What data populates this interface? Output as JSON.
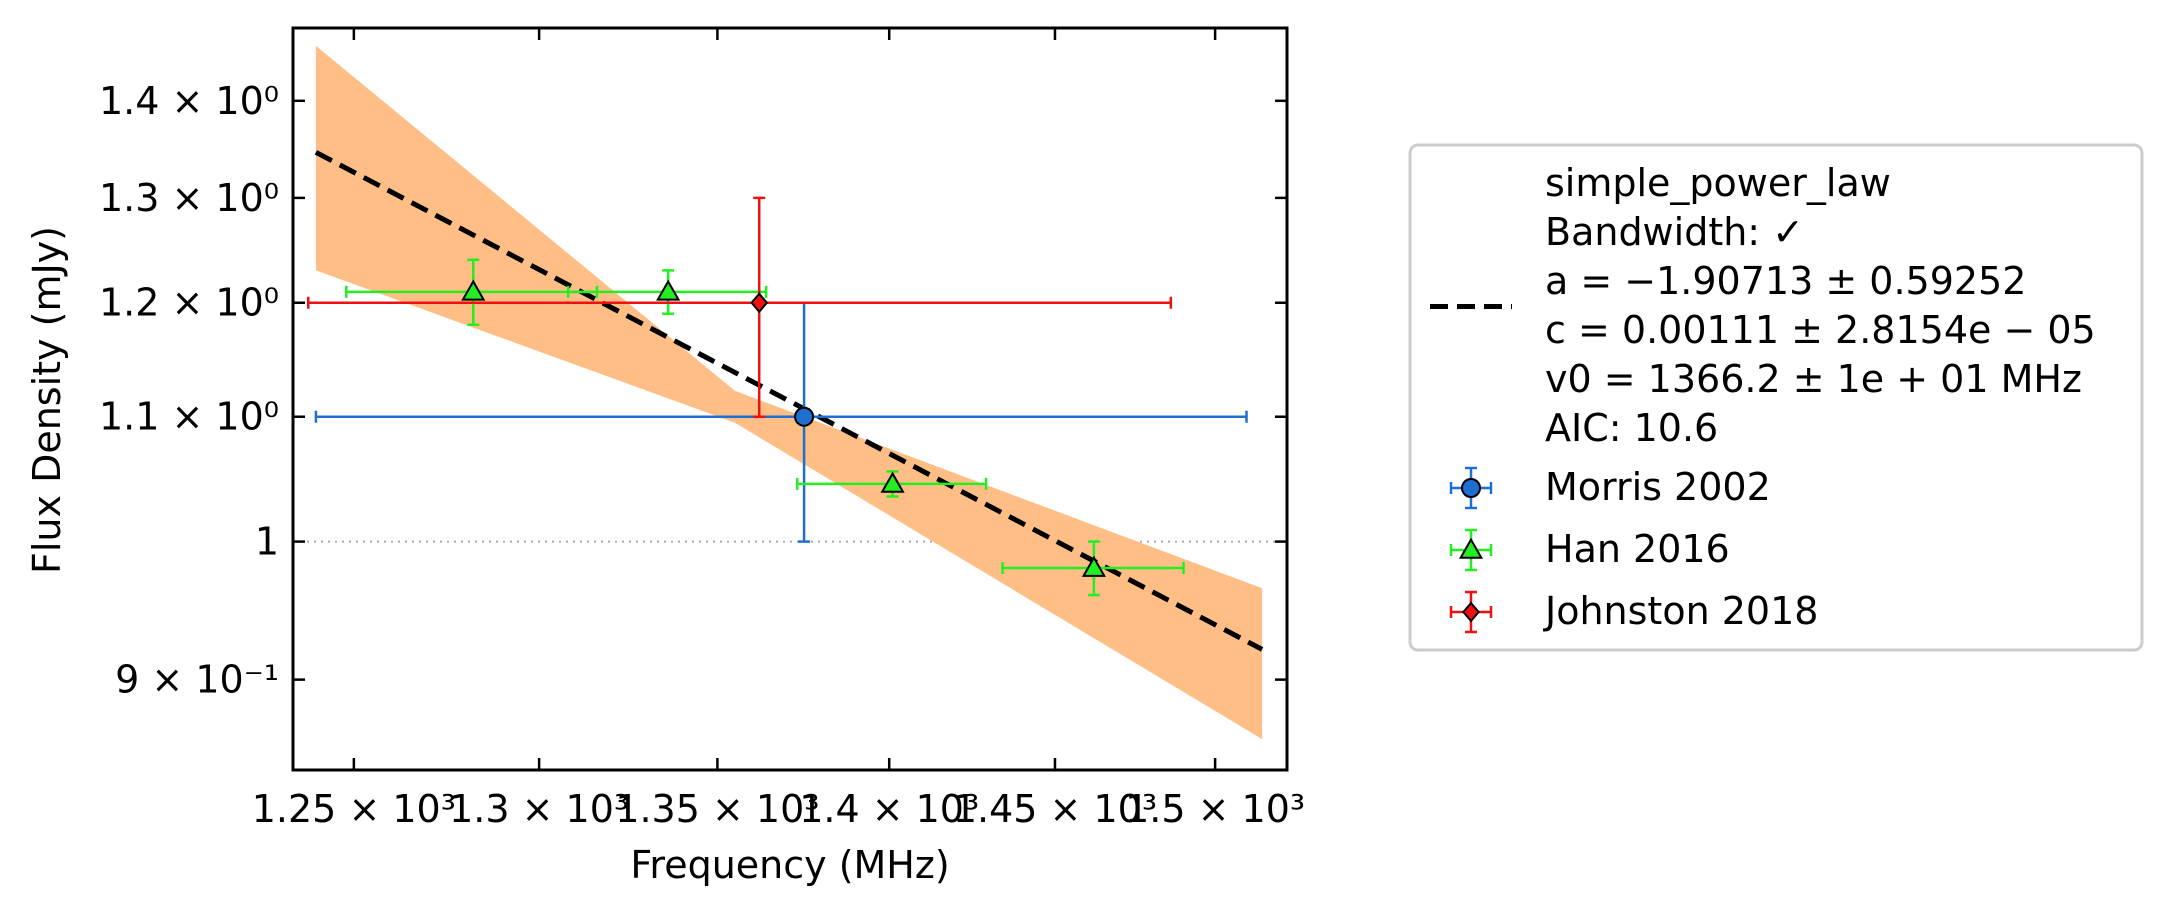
{
  "chart_data": {
    "type": "scatter",
    "xlabel": "Frequency (MHz)",
    "ylabel": "Flux Density (mJy)",
    "x_scale": "log",
    "y_scale": "log",
    "xlim": [
      1234,
      1523
    ],
    "ylim": [
      0.84,
      1.48
    ],
    "x_ticks": [
      {
        "value": 1250,
        "label": "1.25 × 10³"
      },
      {
        "value": 1300,
        "label": "1.3 × 10³"
      },
      {
        "value": 1350,
        "label": "1.35 × 10³"
      },
      {
        "value": 1400,
        "label": "1.4 × 10³"
      },
      {
        "value": 1450,
        "label": "1.45 × 10³"
      },
      {
        "value": 1500,
        "label": "1.5 × 10³"
      }
    ],
    "y_ticks": [
      {
        "value": 0.9,
        "label": "9 × 10⁻¹"
      },
      {
        "value": 1.0,
        "label": "1"
      },
      {
        "value": 1.1,
        "label": "1.1 × 10⁰"
      },
      {
        "value": 1.2,
        "label": "1.2 × 10⁰"
      },
      {
        "value": 1.3,
        "label": "1.3 × 10⁰"
      },
      {
        "value": 1.4,
        "label": "1.4 × 10⁰"
      }
    ],
    "reference_line_y": 1.0,
    "model": {
      "name": "simple_power_law",
      "legend_lines": [
        "simple_power_law",
        "Bandwidth: ✓",
        "a = −1.90713 ± 0.59252",
        "c = 0.00111 ± 2.8154e − 05",
        "v0 = 1366.2 ± 1e + 01 MHz",
        "AIC: 10.6"
      ],
      "x_range": [
        1240,
        1515
      ],
      "line_color": "#000000",
      "band_color": "#ffbe86",
      "band": [
        {
          "x": 1240,
          "lower": 1.23,
          "upper": 1.46
        },
        {
          "x": 1355,
          "lower": 1.095,
          "upper": 1.122
        },
        {
          "x": 1515,
          "lower": 0.86,
          "upper": 0.965
        }
      ],
      "fit_points": [
        {
          "x": 1240,
          "y": 1.346
        },
        {
          "x": 1515,
          "y": 0.921
        }
      ]
    },
    "series": [
      {
        "name": "Morris 2002",
        "color": "#1f6fd0",
        "marker": "circle",
        "points": [
          {
            "x": 1375,
            "y": 1.1,
            "xerr": 135,
            "yerr": 0.1
          }
        ]
      },
      {
        "name": "Han 2016",
        "color": "#22ee22",
        "marker": "triangle",
        "points": [
          {
            "x": 1282,
            "y": 1.21,
            "xerr": 34,
            "yerr": 0.03
          },
          {
            "x": 1336,
            "y": 1.21,
            "xerr": 28,
            "yerr": 0.02
          },
          {
            "x": 1401,
            "y": 1.045,
            "xerr": 28,
            "yerr": 0.01
          },
          {
            "x": 1462,
            "y": 0.98,
            "xerr": 28,
            "yerr": 0.02
          }
        ]
      },
      {
        "name": "Johnston 2018",
        "color": "#ee1111",
        "marker": "diamond",
        "points": [
          {
            "x": 1362,
            "y": 1.2,
            "xerr": 124,
            "yerr": 0.1
          }
        ]
      }
    ]
  }
}
